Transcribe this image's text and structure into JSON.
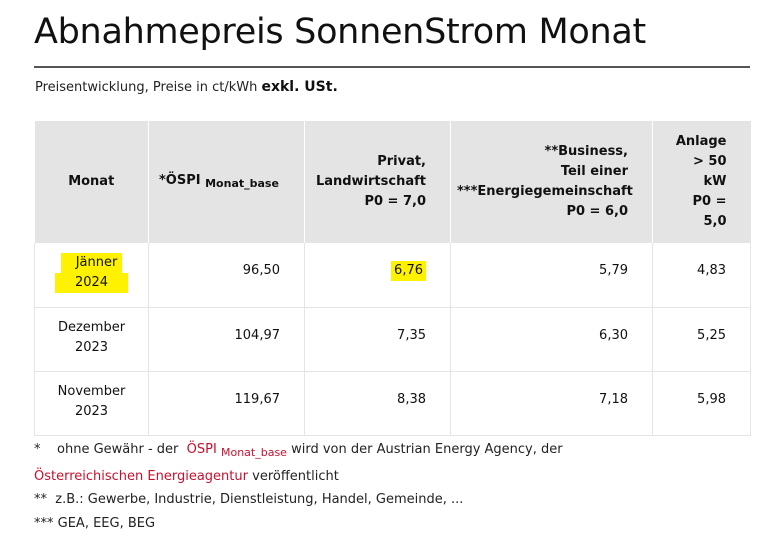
{
  "title": "Abnahmepreis SonnenStrom Monat",
  "subtitle": {
    "text": "Preisentwicklung, Preise in ct/kWh",
    "bold": "exkl. USt."
  },
  "table": {
    "headers": {
      "monat": "Monat",
      "oespi": "*ÖSPI",
      "oespi_sub": "Monat_base",
      "privat_l1": "Privat,",
      "privat_l2": "Landwirtschaft",
      "privat_l3": "P0 = 7,0",
      "business_l1": "**Business,",
      "business_l2": "Teil einer",
      "business_l3": "***Energiegemeinschaft",
      "business_l4": "P0 = 6,0",
      "anlage_l1": "Anlage",
      "anlage_l2": "> 50",
      "anlage_l3": "kW",
      "anlage_l4": "P0 =",
      "anlage_l5": "5,0"
    },
    "rows": [
      {
        "month_l1": "Jänner",
        "month_l2": "2024",
        "oespi": "96,50",
        "privat": "6,76",
        "business": "5,79",
        "anlage": "4,83",
        "highlight": true
      },
      {
        "month_l1": "Dezember",
        "month_l2": "2023",
        "oespi": "104,97",
        "privat": "7,35",
        "business": "6,30",
        "anlage": "5,25",
        "highlight": false
      },
      {
        "month_l1": "November",
        "month_l2": "2023",
        "oespi": "119,67",
        "privat": "8,38",
        "business": "7,18",
        "anlage": "5,98",
        "highlight": false
      }
    ]
  },
  "notes": {
    "n1_star": "*",
    "n1_pre": "ohne Gewähr - der",
    "n1_link": "ÖSPI",
    "n1_link_sub": "Monat_base",
    "n1_post": "wird von der Austrian Energy Agency, der",
    "n2_link": "Österreichischen Energieagentur",
    "n2_post": "veröffentlicht",
    "n3": "**  z.B.: Gewerbe, Industrie, Dienstleistung, Handel, Gemeinde, ...",
    "n4": "*** GEA, EEG, BEG"
  },
  "colors": {
    "highlight": "#fff200",
    "link": "#c8102e",
    "header_bg": "#e4e4e4"
  }
}
